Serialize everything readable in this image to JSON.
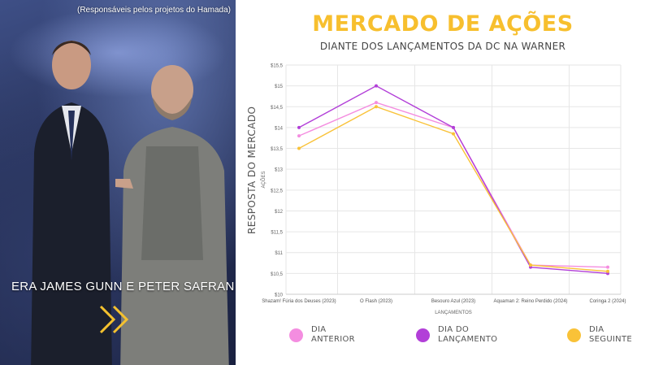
{
  "photo": {
    "caption": "(Responsáveis pelos projetos do Hamada)",
    "headline": "ERA JAMES GUNN E PETER SAFRAN",
    "arrow_icon": "double-chevron-right-icon",
    "arrow_color": "#f4c12f"
  },
  "header": {
    "title": "MERCADO DE AÇÕES",
    "subtitle": "DIANTE DOS LANÇAMENTOS DA DC NA WARNER"
  },
  "side_label": "RESPOSTA DO MERCADO",
  "chart_data": {
    "type": "line",
    "categories": [
      "Shazam! Fúria dos Deuses (2023)",
      "O Flash (2023)",
      "Besouro Azul (2023)",
      "Aquaman 2: Reino Perdido (2024)",
      "Coringa 2 (2024)"
    ],
    "series": [
      {
        "name": "DIA ANTERIOR",
        "values": [
          13.8,
          14.6,
          14.0,
          10.7,
          10.65
        ],
        "color": "#f48de0"
      },
      {
        "name": "DIA DO LANÇAMENTO",
        "values": [
          14.0,
          15.0,
          14.0,
          10.65,
          10.5
        ],
        "color": "#b23fd8"
      },
      {
        "name": "DIA SEGUINTE",
        "values": [
          13.5,
          14.5,
          13.85,
          10.7,
          10.55
        ],
        "color": "#f9c238"
      }
    ],
    "xlabel": "LANÇAMENTOS",
    "ylabel": "AÇÕES",
    "ylim": [
      10,
      15.5
    ],
    "yticks": [
      10,
      10.5,
      11,
      11.5,
      12,
      12.5,
      13,
      13.5,
      14,
      14.5,
      15,
      15.5
    ],
    "ytick_labels": [
      "$10",
      "$10,5",
      "$11",
      "$11,5",
      "$12",
      "$12,5",
      "$13",
      "$13,5",
      "$14",
      "$14,5",
      "$15",
      "$15,5"
    ],
    "grid": true
  },
  "legend": {
    "items": [
      {
        "line1": "DIA",
        "line2": "ANTERIOR",
        "color": "#f48de0"
      },
      {
        "line1": "DIA DO",
        "line2": "LANÇAMENTO",
        "color": "#b23fd8"
      },
      {
        "line1": "DIA",
        "line2": "SEGUINTE",
        "color": "#f9c238"
      }
    ]
  }
}
